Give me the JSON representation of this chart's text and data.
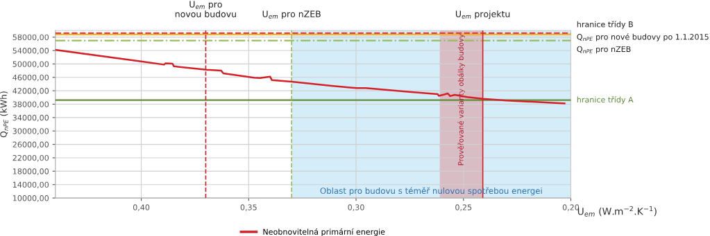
{
  "chart_data": {
    "type": "line",
    "xlabel": "U$_{em}$ (W.m$^{−2}$.K$^{−1}$)",
    "ylabel": "Q$_{nPE}$ (kWh)",
    "x": [
      0.44,
      0.3995,
      0.3894,
      0.3887,
      0.3855,
      0.3848,
      0.3697,
      0.3628,
      0.3618,
      0.3475,
      0.3448,
      0.34,
      0.3392,
      0.33,
      0.3115,
      0.2997,
      0.2955,
      0.2742,
      0.262,
      0.2615,
      0.2589,
      0.2573,
      0.2562,
      0.2541,
      0.2483,
      0.241,
      0.2299,
      0.2029
    ],
    "series": [
      {
        "name": "Neobnovitelná primární energie",
        "color": "#d42027",
        "values": [
          54200,
          50700,
          49800,
          50200,
          50100,
          49300,
          48300,
          48000,
          47200,
          45900,
          45800,
          46200,
          45200,
          44700,
          43500,
          42800,
          42800,
          41600,
          41000,
          40500,
          40900,
          41200,
          40400,
          40800,
          40100,
          39600,
          39100,
          38200
        ]
      }
    ],
    "xlim": [
      0.44,
      0.2
    ],
    "xticks": [
      {
        "value": 0.4,
        "label": "0,40"
      },
      {
        "value": 0.35,
        "label": "0,35"
      },
      {
        "value": 0.3,
        "label": "0,30"
      },
      {
        "value": 0.25,
        "label": "0,25"
      },
      {
        "value": 0.2,
        "label": "0,20"
      }
    ],
    "ylim": [
      10000,
      60000
    ],
    "yticks": [
      {
        "value": 10000,
        "label": "10000,00"
      },
      {
        "value": 14000,
        "label": "14000,00"
      },
      {
        "value": 18000,
        "label": "18000,00"
      },
      {
        "value": 22000,
        "label": "22000,00"
      },
      {
        "value": 26000,
        "label": "26000,00"
      },
      {
        "value": 30000,
        "label": "30000,00"
      },
      {
        "value": 34000,
        "label": "34000,00"
      },
      {
        "value": 38000,
        "label": "38000,00"
      },
      {
        "value": 42000,
        "label": "42000,00"
      },
      {
        "value": 46000,
        "label": "46000,00"
      },
      {
        "value": 50000,
        "label": "50000,00"
      },
      {
        "value": 54000,
        "label": "54000,00"
      },
      {
        "value": 58000,
        "label": "58000,00"
      }
    ],
    "ref_lines": [
      {
        "axis": "y",
        "value": 58800,
        "label": "hranice třídy B",
        "color": "#f5b323",
        "line_style": "solid"
      },
      {
        "axis": "y",
        "value": 59200,
        "label": "Q$_{nPE}$ pro nové budovy po 1.1.2015",
        "color": "#e04040",
        "line_style": "dashed"
      },
      {
        "axis": "y",
        "value": 57000,
        "label": "Q$_{nPE}$ pro nZEB",
        "color": "#9bbb59",
        "line_style": "dashdot"
      },
      {
        "axis": "y",
        "value": 39200,
        "label": "hranice třídy A",
        "color": "#5f8b3a",
        "line_style": "solid"
      },
      {
        "axis": "x",
        "value": 0.37,
        "label": "U$_{em}$ pro\nnovou budovu",
        "color": "#d42027",
        "line_style": "dashed"
      },
      {
        "axis": "x",
        "value": 0.33,
        "label": "U$_{em}$ pro nZEB",
        "color": "#9bbb59",
        "line_style": "dashed"
      },
      {
        "axis": "x",
        "value": 0.241,
        "label": "U$_{em}$ projektu",
        "color": "#e02020",
        "line_style": "solid"
      }
    ],
    "bands": [
      {
        "axis": "x",
        "from": 0.33,
        "to": 0.2,
        "label": "Oblast pro budovu s téměř nulovou spotřebou energei",
        "color": "#cdeaf7"
      },
      {
        "axis": "x",
        "from": 0.261,
        "to": 0.241,
        "label": "Prověřované varianty obálky budovy",
        "color": "#d8b4bc"
      }
    ],
    "grid": true,
    "legend": "bottom",
    "line_style": "solid",
    "marker": "none"
  }
}
